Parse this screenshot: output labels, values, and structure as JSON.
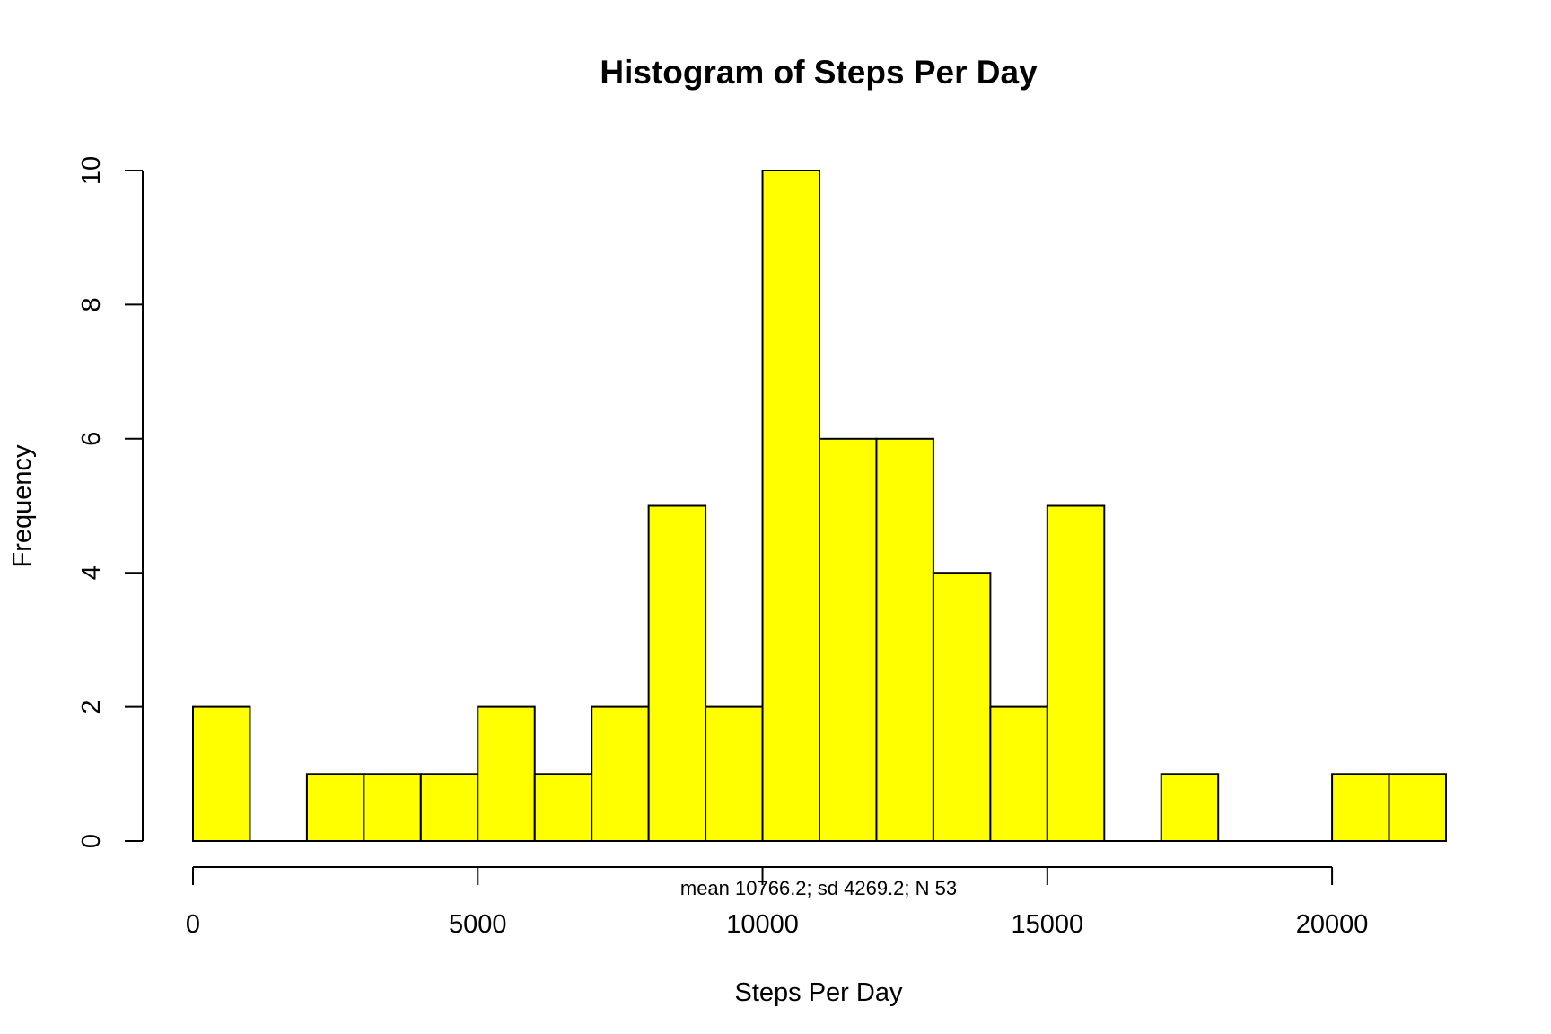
{
  "chart_data": {
    "type": "bar",
    "title": "Histogram of Steps Per Day",
    "xlabel": "Steps Per Day",
    "ylabel": "Frequency",
    "subtitle": "mean 10766.2; sd 4269.2; N 53",
    "bin_width": 1000,
    "bin_edges": [
      0,
      1000,
      2000,
      3000,
      4000,
      5000,
      6000,
      7000,
      8000,
      9000,
      10000,
      11000,
      12000,
      13000,
      14000,
      15000,
      16000,
      17000,
      18000,
      19000,
      20000,
      21000,
      22000
    ],
    "values": [
      2,
      0,
      1,
      1,
      1,
      2,
      1,
      2,
      5,
      2,
      10,
      6,
      6,
      4,
      2,
      5,
      0,
      1,
      0,
      0,
      1,
      1
    ],
    "xlim": [
      0,
      22000
    ],
    "ylim": [
      0,
      10
    ],
    "xticks": [
      0,
      5000,
      10000,
      15000,
      20000
    ],
    "xtick_labels": [
      "0",
      "5000",
      "10000",
      "15000",
      "20000"
    ],
    "yticks": [
      0,
      2,
      4,
      6,
      8,
      10
    ],
    "ytick_labels": [
      "0",
      "2",
      "4",
      "6",
      "8",
      "10"
    ],
    "bar_color": "#ffff00",
    "edge_color": "#000000",
    "grid": false,
    "legend": "none"
  }
}
